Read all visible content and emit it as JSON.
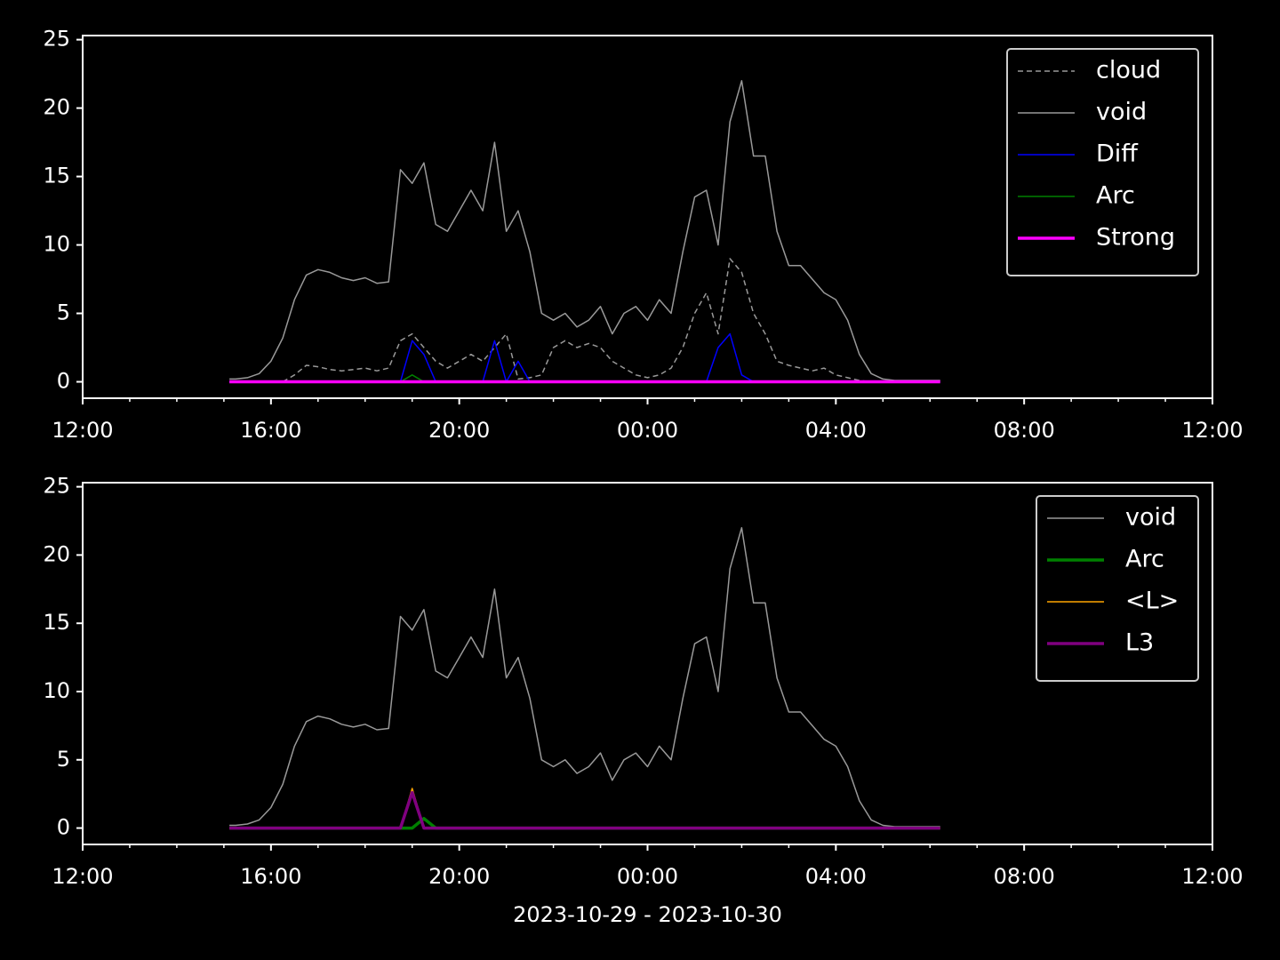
{
  "chart_data": [
    {
      "type": "line",
      "legend": "upper right",
      "x": [
        "15:07",
        "15:15",
        "15:30",
        "15:45",
        "16:00",
        "16:15",
        "16:30",
        "16:45",
        "17:00",
        "17:15",
        "17:30",
        "17:45",
        "18:00",
        "18:15",
        "18:30",
        "18:45",
        "19:00",
        "19:15",
        "19:30",
        "19:45",
        "20:00",
        "20:15",
        "20:30",
        "20:45",
        "21:00",
        "21:15",
        "21:30",
        "21:45",
        "22:00",
        "22:15",
        "22:30",
        "22:45",
        "23:00",
        "23:15",
        "23:30",
        "23:45",
        "00:00",
        "00:15",
        "00:30",
        "00:45",
        "01:00",
        "01:15",
        "01:30",
        "01:45",
        "02:00",
        "02:15",
        "02:30",
        "02:45",
        "03:00",
        "03:15",
        "03:30",
        "03:45",
        "04:00",
        "04:15",
        "04:30",
        "04:45",
        "05:00",
        "05:15",
        "05:30",
        "05:45",
        "06:00",
        "06:13"
      ],
      "xlim": [
        "12:00",
        "12:00"
      ],
      "xticks": [
        "12:00",
        "16:00",
        "20:00",
        "00:00",
        "04:00",
        "08:00",
        "12:00"
      ],
      "ylim": [
        -1.2,
        25.3
      ],
      "yticks": [
        0,
        5,
        10,
        15,
        20,
        25
      ],
      "series": [
        {
          "name": "cloud",
          "color": "#999999",
          "linestyle": "dashed",
          "linewidth": 1.5,
          "values": [
            0,
            0,
            0,
            0,
            0,
            0,
            0.5,
            1.2,
            1.1,
            0.9,
            0.8,
            0.9,
            1.0,
            0.8,
            1.0,
            3.0,
            3.5,
            2.5,
            1.5,
            1.0,
            1.5,
            2.0,
            1.5,
            2.5,
            3.5,
            0.2,
            0.3,
            0.5,
            2.5,
            3.0,
            2.5,
            2.8,
            2.5,
            1.5,
            1.0,
            0.5,
            0.3,
            0.5,
            1.0,
            2.5,
            5.0,
            6.5,
            3.5,
            9.0,
            8.0,
            5.0,
            3.5,
            1.5,
            1.2,
            1.0,
            0.8,
            1.0,
            0.5,
            0.3,
            0.1,
            0,
            0,
            0,
            0,
            0,
            0,
            0
          ]
        },
        {
          "name": "void",
          "color": "#999999",
          "linestyle": "solid",
          "linewidth": 1.5,
          "values": [
            0.2,
            0.2,
            0.3,
            0.6,
            1.5,
            3.2,
            6.0,
            7.8,
            8.2,
            8.0,
            7.6,
            7.4,
            7.6,
            7.2,
            7.3,
            15.5,
            14.5,
            16.0,
            11.5,
            11.0,
            12.5,
            14.0,
            12.5,
            17.5,
            11.0,
            12.5,
            9.5,
            5.0,
            4.5,
            5.0,
            4.0,
            4.5,
            5.5,
            3.5,
            5.0,
            5.5,
            4.5,
            6.0,
            5.0,
            9.5,
            13.5,
            14.0,
            10.0,
            19.0,
            22.0,
            16.5,
            16.5,
            11.0,
            8.5,
            8.5,
            7.5,
            6.5,
            6.0,
            4.5,
            2.0,
            0.6,
            0.2,
            0.1,
            0.1,
            0.1,
            0.1,
            0.1
          ]
        },
        {
          "name": "Diff",
          "color": "#0000ff",
          "linestyle": "solid",
          "linewidth": 1.5,
          "values": [
            0,
            0,
            0,
            0,
            0,
            0,
            0,
            0,
            0,
            0,
            0,
            0,
            0,
            0,
            0,
            0,
            3.0,
            2.0,
            0,
            0,
            0,
            0,
            0,
            3.0,
            0,
            1.5,
            0,
            0,
            0,
            0,
            0,
            0,
            0,
            0,
            0,
            0,
            0,
            0,
            0,
            0,
            0,
            0,
            2.5,
            3.5,
            0.5,
            0,
            0,
            0,
            0,
            0,
            0,
            0,
            0,
            0,
            0,
            0,
            0,
            0,
            0,
            0,
            0,
            0
          ]
        },
        {
          "name": "Arc",
          "color": "#008000",
          "linestyle": "solid",
          "linewidth": 1.5,
          "values": [
            0,
            0,
            0,
            0,
            0,
            0,
            0,
            0,
            0,
            0,
            0,
            0,
            0,
            0,
            0,
            0,
            0.5,
            0,
            0,
            0,
            0,
            0,
            0,
            0,
            0,
            0,
            0,
            0,
            0,
            0,
            0,
            0,
            0,
            0,
            0,
            0,
            0,
            0,
            0,
            0,
            0,
            0,
            0,
            0,
            0,
            0,
            0,
            0,
            0,
            0,
            0,
            0,
            0,
            0,
            0,
            0,
            0,
            0,
            0,
            0,
            0,
            0
          ]
        },
        {
          "name": "Strong",
          "color": "#ff00ff",
          "linestyle": "solid",
          "linewidth": 3.5,
          "values": [
            0,
            0,
            0,
            0,
            0,
            0,
            0,
            0,
            0,
            0,
            0,
            0,
            0,
            0,
            0,
            0,
            0,
            0,
            0,
            0,
            0,
            0,
            0,
            0,
            0,
            0,
            0,
            0,
            0,
            0,
            0,
            0,
            0,
            0,
            0,
            0,
            0,
            0,
            0,
            0,
            0,
            0,
            0,
            0,
            0,
            0,
            0,
            0,
            0,
            0,
            0,
            0,
            0,
            0,
            0,
            0,
            0,
            0,
            0,
            0,
            0,
            0
          ]
        }
      ]
    },
    {
      "type": "line",
      "legend": "upper right",
      "xlabel": "2023-10-29 - 2023-10-30",
      "x": [
        "15:07",
        "15:15",
        "15:30",
        "15:45",
        "16:00",
        "16:15",
        "16:30",
        "16:45",
        "17:00",
        "17:15",
        "17:30",
        "17:45",
        "18:00",
        "18:15",
        "18:30",
        "18:45",
        "19:00",
        "19:15",
        "19:30",
        "19:45",
        "20:00",
        "20:15",
        "20:30",
        "20:45",
        "21:00",
        "21:15",
        "21:30",
        "21:45",
        "22:00",
        "22:15",
        "22:30",
        "22:45",
        "23:00",
        "23:15",
        "23:30",
        "23:45",
        "00:00",
        "00:15",
        "00:30",
        "00:45",
        "01:00",
        "01:15",
        "01:30",
        "01:45",
        "02:00",
        "02:15",
        "02:30",
        "02:45",
        "03:00",
        "03:15",
        "03:30",
        "03:45",
        "04:00",
        "04:15",
        "04:30",
        "04:45",
        "05:00",
        "05:15",
        "05:30",
        "05:45",
        "06:00",
        "06:13"
      ],
      "xlim": [
        "12:00",
        "12:00"
      ],
      "xticks": [
        "12:00",
        "16:00",
        "20:00",
        "00:00",
        "04:00",
        "08:00",
        "12:00"
      ],
      "ylim": [
        -1.2,
        25.3
      ],
      "yticks": [
        0,
        5,
        10,
        15,
        20,
        25
      ],
      "series": [
        {
          "name": "void",
          "color": "#999999",
          "linestyle": "solid",
          "linewidth": 1.5,
          "values": [
            0.2,
            0.2,
            0.3,
            0.6,
            1.5,
            3.2,
            6.0,
            7.8,
            8.2,
            8.0,
            7.6,
            7.4,
            7.6,
            7.2,
            7.3,
            15.5,
            14.5,
            16.0,
            11.5,
            11.0,
            12.5,
            14.0,
            12.5,
            17.5,
            11.0,
            12.5,
            9.5,
            5.0,
            4.5,
            5.0,
            4.0,
            4.5,
            5.5,
            3.5,
            5.0,
            5.5,
            4.5,
            6.0,
            5.0,
            9.5,
            13.5,
            14.0,
            10.0,
            19.0,
            22.0,
            16.5,
            16.5,
            11.0,
            8.5,
            8.5,
            7.5,
            6.5,
            6.0,
            4.5,
            2.0,
            0.6,
            0.2,
            0.1,
            0.1,
            0.1,
            0.1,
            0.1
          ]
        },
        {
          "name": "Arc",
          "color": "#008000",
          "linestyle": "solid",
          "linewidth": 3.5,
          "values": [
            0,
            0,
            0,
            0,
            0,
            0,
            0,
            0,
            0,
            0,
            0,
            0,
            0,
            0,
            0,
            0,
            0,
            0.7,
            0,
            0,
            0,
            0,
            0,
            0,
            0,
            0,
            0,
            0,
            0,
            0,
            0,
            0,
            0,
            0,
            0,
            0,
            0,
            0,
            0,
            0,
            0,
            0,
            0,
            0,
            0,
            0,
            0,
            0,
            0,
            0,
            0,
            0,
            0,
            0,
            0,
            0,
            0,
            0,
            0,
            0,
            0,
            0
          ]
        },
        {
          "name": "<L>",
          "color": "#ffa500",
          "linestyle": "solid",
          "linewidth": 1.5,
          "values": [
            0,
            0,
            0,
            0,
            0,
            0,
            0,
            0,
            0,
            0,
            0,
            0,
            0,
            0,
            0,
            0,
            2.9,
            0,
            0,
            0,
            0,
            0,
            0,
            0,
            0,
            0,
            0,
            0,
            0,
            0,
            0,
            0,
            0,
            0,
            0,
            0,
            0,
            0,
            0,
            0,
            0,
            0,
            0,
            0,
            0,
            0,
            0,
            0,
            0,
            0,
            0,
            0,
            0,
            0,
            0,
            0,
            0,
            0,
            0,
            0,
            0,
            0
          ]
        },
        {
          "name": "L3",
          "color": "#800080",
          "linestyle": "solid",
          "linewidth": 3.5,
          "values": [
            0,
            0,
            0,
            0,
            0,
            0,
            0,
            0,
            0,
            0,
            0,
            0,
            0,
            0,
            0,
            0,
            2.6,
            0,
            0,
            0,
            0,
            0,
            0,
            0,
            0,
            0,
            0,
            0,
            0,
            0,
            0,
            0,
            0,
            0,
            0,
            0,
            0,
            0,
            0,
            0,
            0,
            0,
            0,
            0,
            0,
            0,
            0,
            0,
            0,
            0,
            0,
            0,
            0,
            0,
            0,
            0,
            0,
            0,
            0,
            0,
            0,
            0
          ]
        }
      ]
    }
  ]
}
